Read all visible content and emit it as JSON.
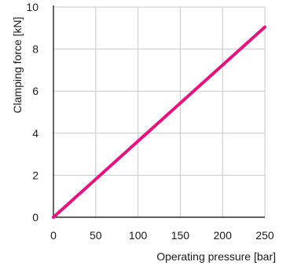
{
  "chart_data": {
    "type": "line",
    "title": "",
    "xlabel": "Operating pressure [bar]",
    "ylabel": "Clamping force [kN]",
    "xlim": [
      0,
      250
    ],
    "ylim": [
      0,
      10
    ],
    "x_ticks": [
      0,
      50,
      100,
      150,
      200,
      250
    ],
    "y_ticks": [
      0,
      2,
      4,
      6,
      8,
      10
    ],
    "grid": true,
    "legend": "none",
    "series": [
      {
        "x": [
          0,
          250
        ],
        "y": [
          0,
          9.05
        ],
        "color": "#e3157d"
      }
    ]
  }
}
